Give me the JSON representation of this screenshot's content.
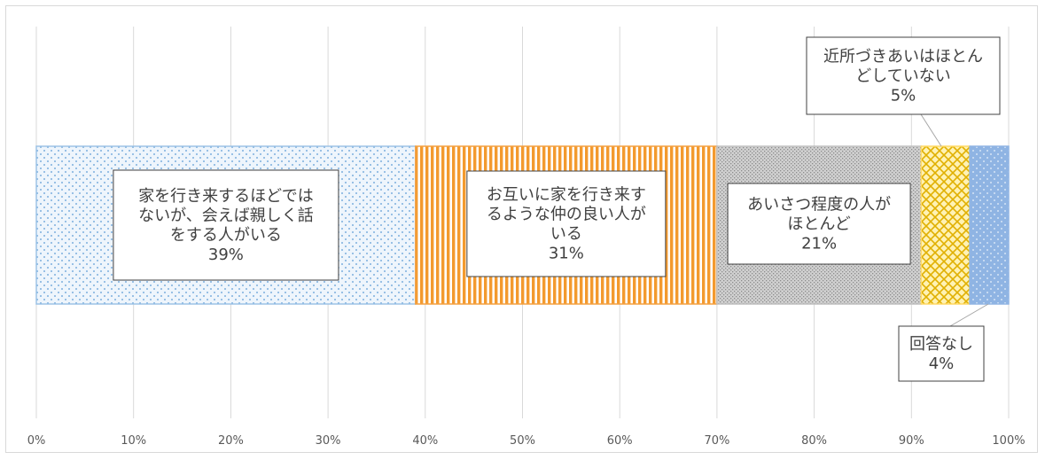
{
  "chart_data": {
    "type": "bar",
    "orientation": "horizontal",
    "stacked": true,
    "title": "",
    "xlabel": "",
    "ylabel": "",
    "xlim": [
      0,
      100
    ],
    "x_ticks": [
      "0%",
      "10%",
      "20%",
      "30%",
      "40%",
      "50%",
      "60%",
      "70%",
      "80%",
      "90%",
      "100%"
    ],
    "grid": true,
    "legend": "none",
    "series": [
      {
        "name": "家を行き来するほどではないが、会えば親しく話をする人がいる",
        "value": 39,
        "value_label": "39%",
        "label_lines": [
          "家を行き来するほどでは",
          "ないが、会えば親しく話",
          "をする人がいる"
        ],
        "color": "#9dc3e6",
        "pattern": "dots"
      },
      {
        "name": "お互いに家を行き来するような仲の良い人がいる",
        "value": 31,
        "value_label": "31%",
        "label_lines": [
          "お互いに家を行き来す",
          "るような仲の良い人が",
          "いる"
        ],
        "color": "#f4a040",
        "pattern": "vertical-stripes"
      },
      {
        "name": "あいさつ程度の人がほとんど",
        "value": 21,
        "value_label": "21%",
        "label_lines": [
          "あいさつ程度の人が",
          "ほとんど"
        ],
        "color": "#bfbfbf",
        "pattern": "fine-dots"
      },
      {
        "name": "近所づきあいはほとんどしていない",
        "value": 5,
        "value_label": "5%",
        "label_lines": [
          "近所づきあいはほとん",
          "どしていない"
        ],
        "color": "#ffd966",
        "pattern": "lattice"
      },
      {
        "name": "回答なし",
        "value": 4,
        "value_label": "4%",
        "label_lines": [
          "回答なし"
        ],
        "color": "#8fb4e3",
        "pattern": "dots"
      }
    ]
  }
}
